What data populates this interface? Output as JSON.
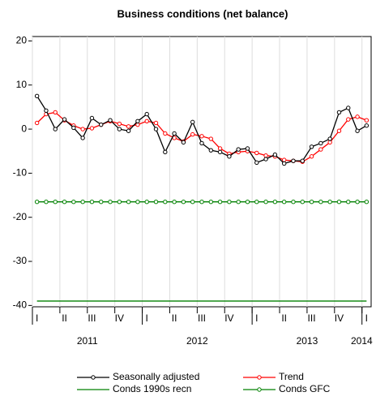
{
  "chart_data": {
    "type": "line",
    "title": "Business conditions (net balance)",
    "categories": [
      "I",
      null,
      null,
      "II",
      null,
      null,
      "III",
      null,
      null,
      "IV",
      null,
      null,
      "I",
      null,
      null,
      "II",
      null,
      null,
      "III",
      null,
      null,
      "IV",
      null,
      null,
      "I",
      null,
      null,
      "II",
      null,
      null,
      "III",
      null,
      null,
      "IV",
      null,
      null,
      "I"
    ],
    "years": [
      "2011",
      "2012",
      "2013",
      "2014"
    ],
    "series": [
      {
        "name": "Seasonally adjusted",
        "color": "#000000",
        "markers": true,
        "values": [
          7.5,
          4.2,
          0,
          2.2,
          0.3,
          -2,
          2.5,
          1,
          2,
          0,
          -0.4,
          1.8,
          3.4,
          0,
          -5.2,
          -1,
          -3,
          1.6,
          -3.2,
          -4.8,
          -5.2,
          -6.2,
          -4.6,
          -4.4,
          -7.6,
          -6.8,
          -5.8,
          -7.8,
          -7.2,
          -7.2,
          -4,
          -3.2,
          -2.2,
          3.8,
          4.8,
          -0.4,
          0.8
        ]
      },
      {
        "name": "Trend",
        "color": "#ff0000",
        "markers": true,
        "values": [
          1.4,
          3.4,
          3.8,
          2.0,
          0.8,
          0,
          0.2,
          1.0,
          1.8,
          1.2,
          0.6,
          1.0,
          1.8,
          1.4,
          -1.0,
          -2.0,
          -2.8,
          -1.2,
          -1.6,
          -2.2,
          -4.4,
          -5.6,
          -5.2,
          -5.0,
          -5.4,
          -6.0,
          -6.2,
          -7.0,
          -7.2,
          -7.4,
          -6.2,
          -4.6,
          -3.0,
          -0.4,
          2.2,
          2.8,
          2.0
        ]
      },
      {
        "name": "Conds 1990s recn",
        "color": "#008000",
        "markers": false,
        "values": [
          -39,
          -39,
          -39,
          -39,
          -39,
          -39,
          -39,
          -39,
          -39,
          -39,
          -39,
          -39,
          -39,
          -39,
          -39,
          -39,
          -39,
          -39,
          -39,
          -39,
          -39,
          -39,
          -39,
          -39,
          -39,
          -39,
          -39,
          -39,
          -39,
          -39,
          -39,
          -39,
          -39,
          -39,
          -39,
          -39,
          -39
        ]
      },
      {
        "name": "Conds GFC",
        "color": "#008000",
        "markers": true,
        "values": [
          -16.5,
          -16.5,
          -16.5,
          -16.5,
          -16.5,
          -16.5,
          -16.5,
          -16.5,
          -16.5,
          -16.5,
          -16.5,
          -16.5,
          -16.5,
          -16.5,
          -16.5,
          -16.5,
          -16.5,
          -16.5,
          -16.5,
          -16.5,
          -16.5,
          -16.5,
          -16.5,
          -16.5,
          -16.5,
          -16.5,
          -16.5,
          -16.5,
          -16.5,
          -16.5,
          -16.5,
          -16.5,
          -16.5,
          -16.5,
          -16.5,
          -16.5,
          -16.5
        ]
      }
    ],
    "ylim": [
      -40.3,
      21
    ],
    "yticks": [
      -40,
      -30,
      -20,
      -10,
      0,
      10,
      20
    ]
  }
}
